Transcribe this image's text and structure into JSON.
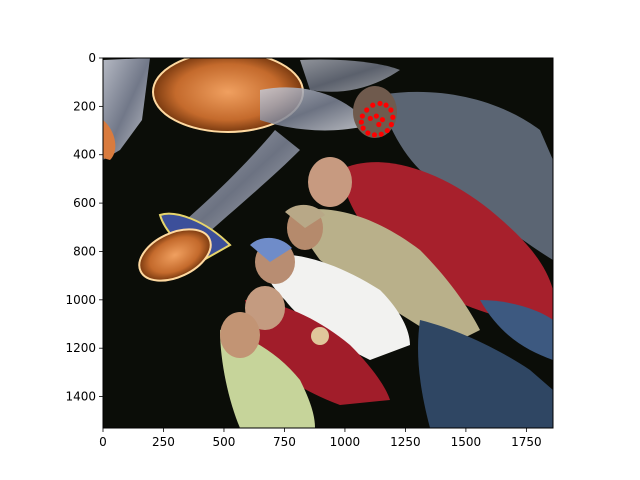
{
  "chart_data": {
    "type": "image",
    "title": "",
    "xlabel": "",
    "ylabel": "",
    "xlim": [
      0,
      1860
    ],
    "ylim": [
      1530,
      0
    ],
    "x_ticks": [
      0,
      250,
      500,
      750,
      1000,
      1250,
      1500,
      1750
    ],
    "y_ticks": [
      0,
      200,
      400,
      600,
      800,
      1000,
      1200,
      1400
    ],
    "x_tick_labels": [
      "0",
      "250",
      "500",
      "750",
      "1000",
      "1250",
      "1500",
      "1750"
    ],
    "y_tick_labels": [
      "0",
      "200",
      "400",
      "600",
      "800",
      "1000",
      "1200",
      "1400"
    ],
    "grid": false,
    "image": {
      "content": "rotated photo of a group of people posing in front of an illuminated decorative sculpture at night",
      "background_color": "#0b0d08"
    },
    "marker_points": [
      {
        "x": 1072,
        "y": 240
      },
      {
        "x": 1090,
        "y": 215
      },
      {
        "x": 1115,
        "y": 195
      },
      {
        "x": 1145,
        "y": 188
      },
      {
        "x": 1170,
        "y": 195
      },
      {
        "x": 1190,
        "y": 215
      },
      {
        "x": 1198,
        "y": 245
      },
      {
        "x": 1192,
        "y": 275
      },
      {
        "x": 1175,
        "y": 300
      },
      {
        "x": 1150,
        "y": 315
      },
      {
        "x": 1122,
        "y": 318
      },
      {
        "x": 1095,
        "y": 310
      },
      {
        "x": 1075,
        "y": 290
      },
      {
        "x": 1068,
        "y": 265
      },
      {
        "x": 1105,
        "y": 250
      },
      {
        "x": 1130,
        "y": 240
      },
      {
        "x": 1155,
        "y": 255
      },
      {
        "x": 1140,
        "y": 275
      }
    ],
    "marker_color": "#ff0000"
  }
}
